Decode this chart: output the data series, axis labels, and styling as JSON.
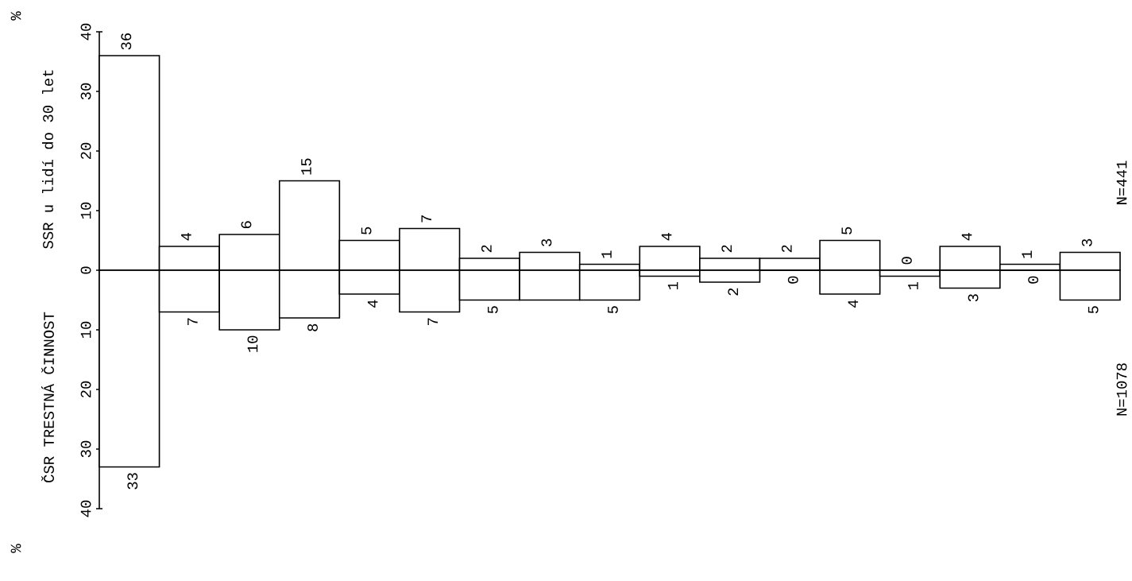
{
  "chart_data": [
    {
      "type": "bar",
      "ylabel": "SSR u lidí do 30 let",
      "categories": [
        null,
        null,
        null,
        null,
        null,
        null,
        null,
        null,
        null,
        null,
        null,
        null,
        null,
        null,
        null,
        null,
        null
      ],
      "series": [
        {
          "color": "#000000",
          "values": [
            36,
            4,
            6,
            15,
            5,
            7,
            2,
            3,
            1,
            4,
            2,
            2,
            5,
            0,
            4,
            1,
            3
          ]
        }
      ],
      "data_labels": true,
      "ylim": [
        0,
        40
      ],
      "yticks": [
        0,
        10,
        20,
        30,
        40
      ],
      "annotations": [
        "%",
        "N=441"
      ]
    },
    {
      "type": "bar",
      "ylabel": "ČSR TRESTNÁ ČINNOST",
      "categories": [
        null,
        null,
        null,
        null,
        null,
        null,
        null,
        null,
        null,
        null,
        null,
        null,
        null,
        null,
        null,
        null,
        null
      ],
      "series": [
        {
          "color": "#000000",
          "values": [
            33,
            7,
            10,
            8,
            4,
            7,
            5,
            5,
            5,
            1,
            2,
            0,
            4,
            1,
            3,
            0,
            5
          ],
          "value_labels": [
            "33",
            "7",
            "10",
            "8",
            "4",
            "7",
            "5",
            null,
            "5",
            "1",
            "2",
            "0",
            "4",
            "1",
            "3",
            "0",
            "5"
          ]
        }
      ],
      "ylim": [
        40,
        0
      ],
      "yticks": [
        10,
        20,
        30,
        40
      ],
      "annotations": [
        "%",
        "N=1078"
      ]
    }
  ]
}
